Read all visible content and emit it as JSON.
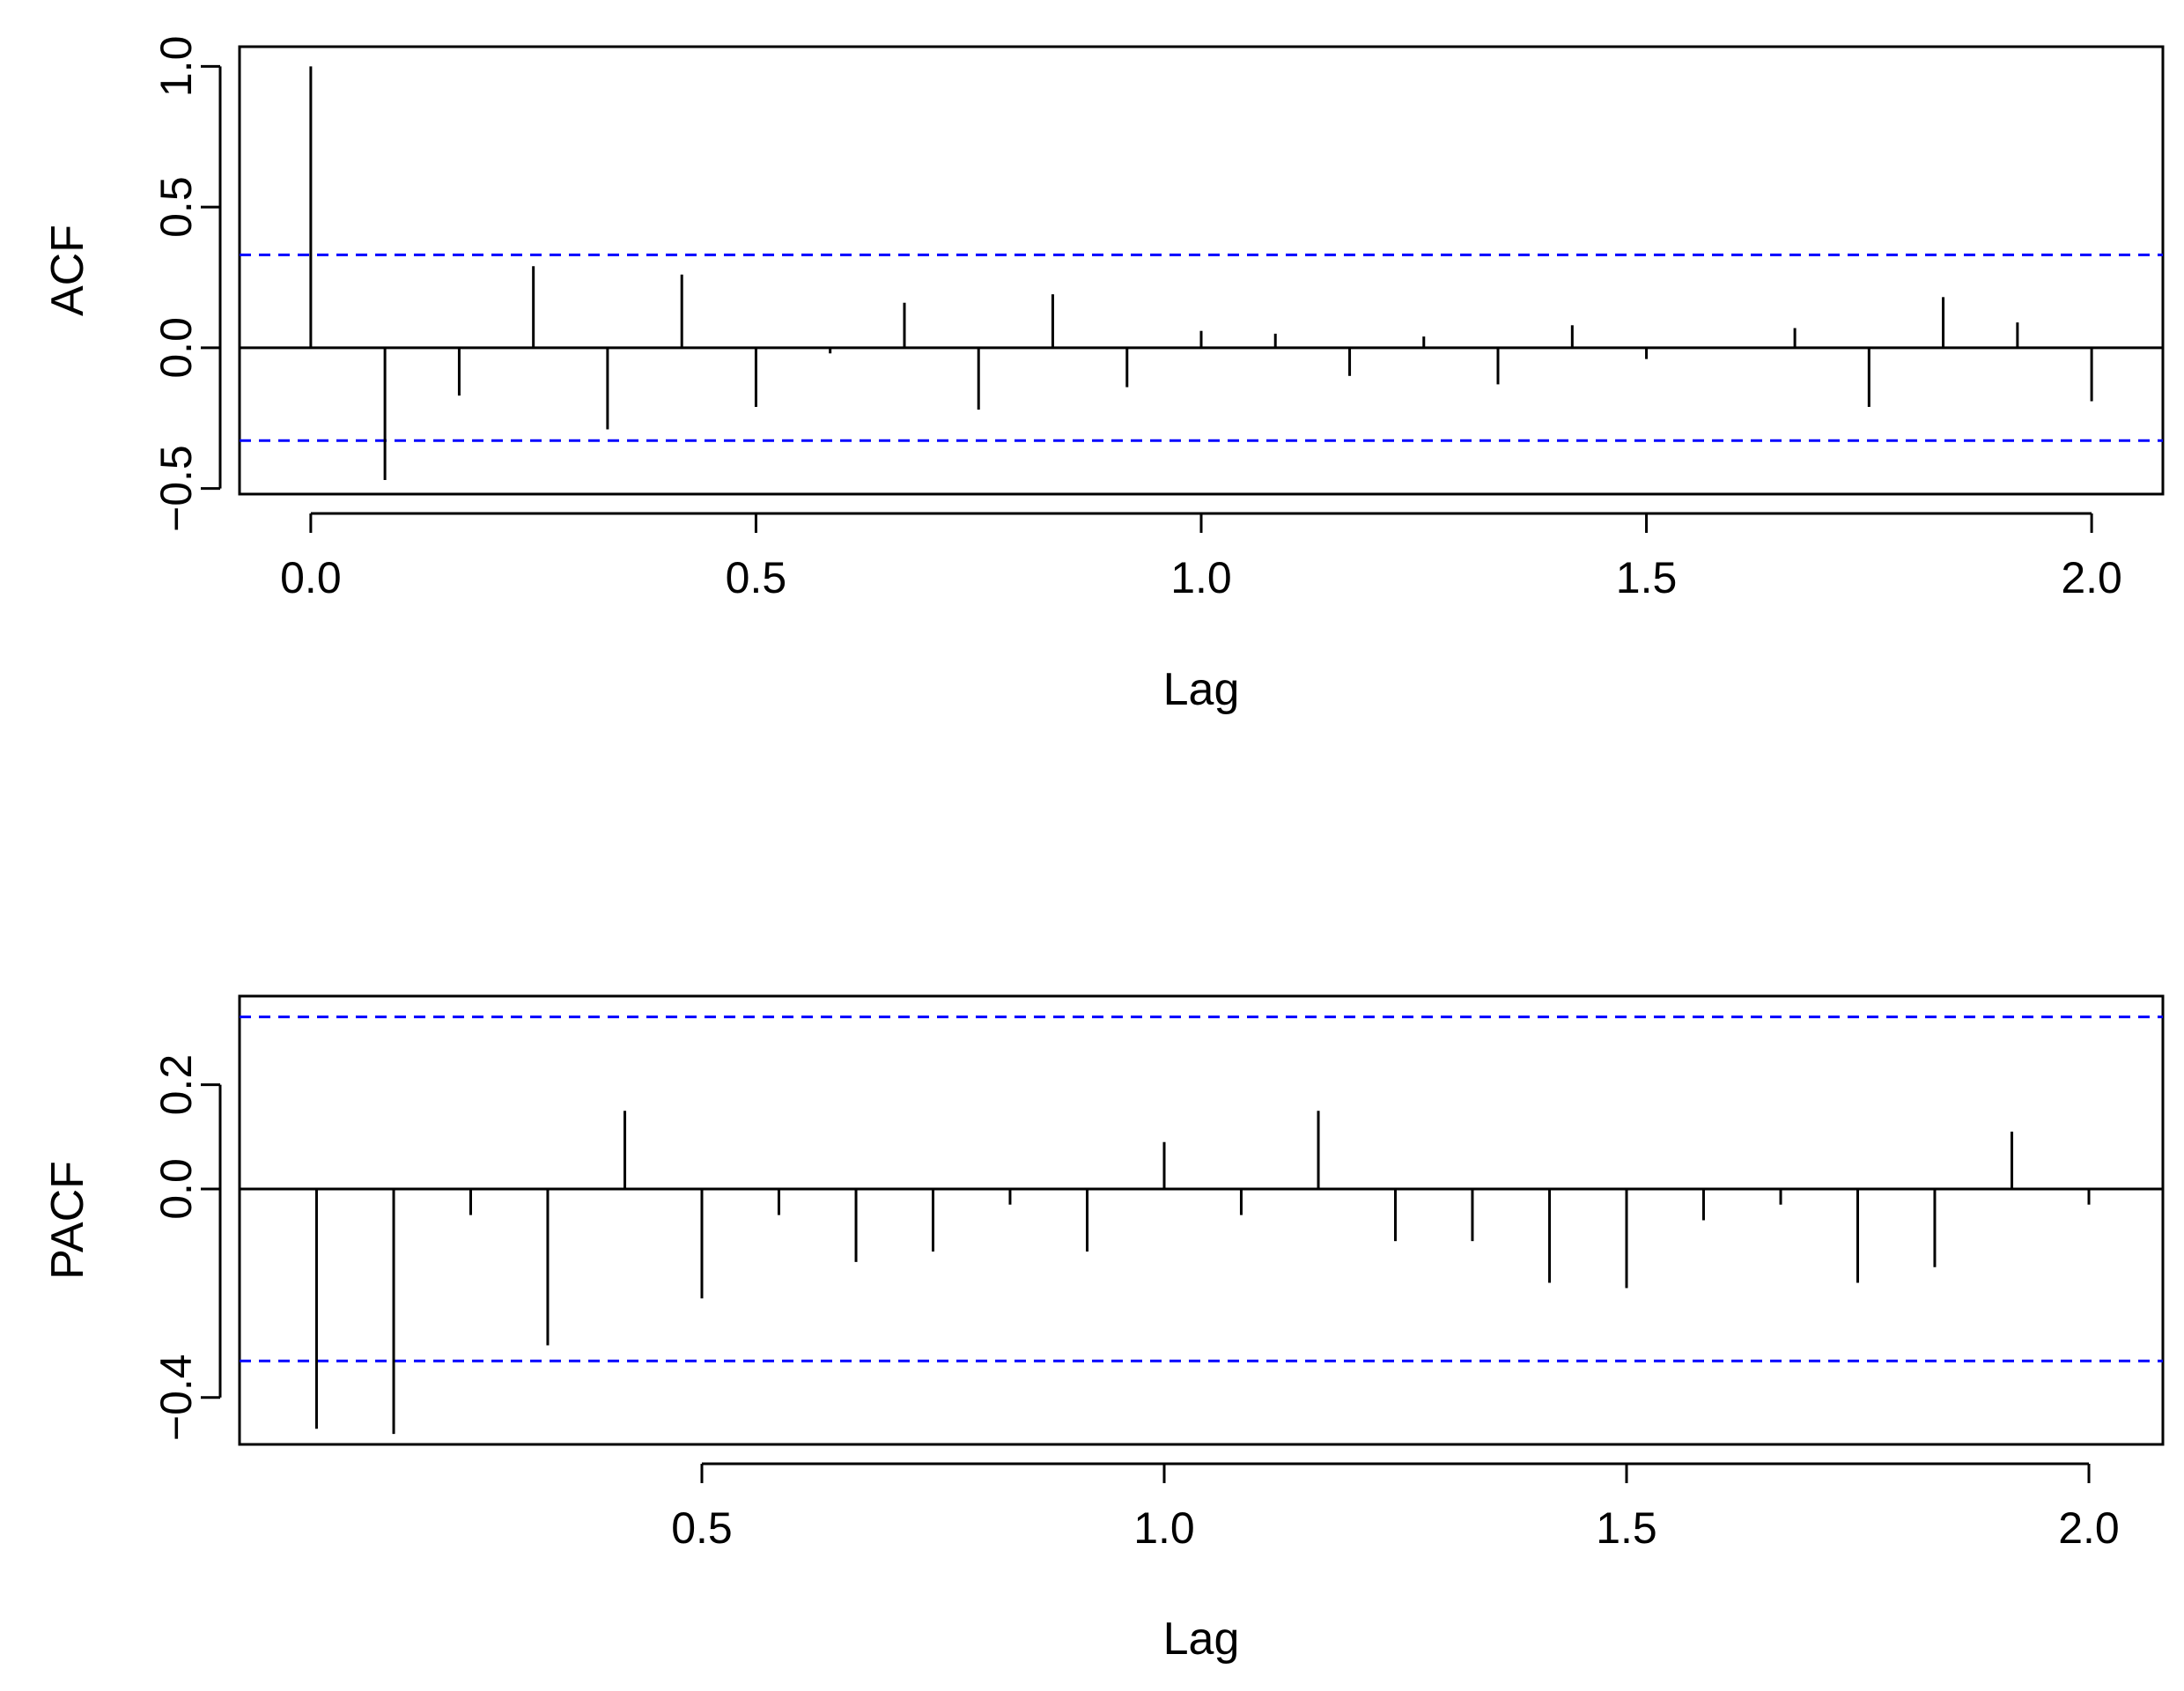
{
  "chart_data": [
    {
      "type": "bar",
      "ylabel": "ACF",
      "xlabel": "Lag",
      "xlim": [
        -0.08,
        2.08
      ],
      "ylim": [
        -0.52,
        1.07
      ],
      "x_ticks": [
        "0.0",
        "0.5",
        "1.0",
        "1.5",
        "2.0"
      ],
      "y_ticks": [
        "-0.5",
        "0.0",
        "0.5",
        "1.0"
      ],
      "confidence_bound": 0.33,
      "bound_color": "#0000ff",
      "lags": [
        0,
        0.0833,
        0.1667,
        0.25,
        0.3333,
        0.4167,
        0.5,
        0.5833,
        0.6667,
        0.75,
        0.8333,
        0.9167,
        1.0,
        1.0833,
        1.1667,
        1.25,
        1.3333,
        1.4167,
        1.5,
        1.5833,
        1.6667,
        1.75,
        1.8333,
        1.9167,
        2.0
      ],
      "values": [
        1.0,
        -0.47,
        -0.17,
        0.29,
        -0.29,
        0.26,
        -0.21,
        -0.02,
        0.16,
        -0.22,
        0.19,
        -0.14,
        0.06,
        0.05,
        -0.1,
        0.04,
        -0.13,
        0.08,
        -0.04,
        0.0,
        0.07,
        -0.21,
        0.18,
        0.09,
        -0.19
      ]
    },
    {
      "type": "bar",
      "ylabel": "PACF",
      "xlabel": "Lag",
      "xlim": [
        -0.0,
        2.08
      ],
      "ylim": [
        -0.49,
        0.37
      ],
      "x_ticks": [
        "0.5",
        "1.0",
        "1.5",
        "2.0"
      ],
      "y_ticks": [
        "-0.4",
        "0.0",
        "0.2"
      ],
      "confidence_bound": 0.33,
      "bound_color": "#0000ff",
      "lags": [
        0.0833,
        0.1667,
        0.25,
        0.3333,
        0.4167,
        0.5,
        0.5833,
        0.6667,
        0.75,
        0.8333,
        0.9167,
        1.0,
        1.0833,
        1.1667,
        1.25,
        1.3333,
        1.4167,
        1.5,
        1.5833,
        1.6667,
        1.75,
        1.8333,
        1.9167,
        2.0
      ],
      "values": [
        -0.46,
        -0.47,
        -0.05,
        -0.3,
        0.15,
        -0.21,
        -0.05,
        -0.14,
        -0.12,
        -0.03,
        -0.12,
        0.09,
        -0.05,
        0.15,
        -0.1,
        -0.1,
        -0.18,
        -0.19,
        -0.06,
        -0.03,
        -0.18,
        -0.15,
        0.11,
        -0.03
      ]
    }
  ]
}
